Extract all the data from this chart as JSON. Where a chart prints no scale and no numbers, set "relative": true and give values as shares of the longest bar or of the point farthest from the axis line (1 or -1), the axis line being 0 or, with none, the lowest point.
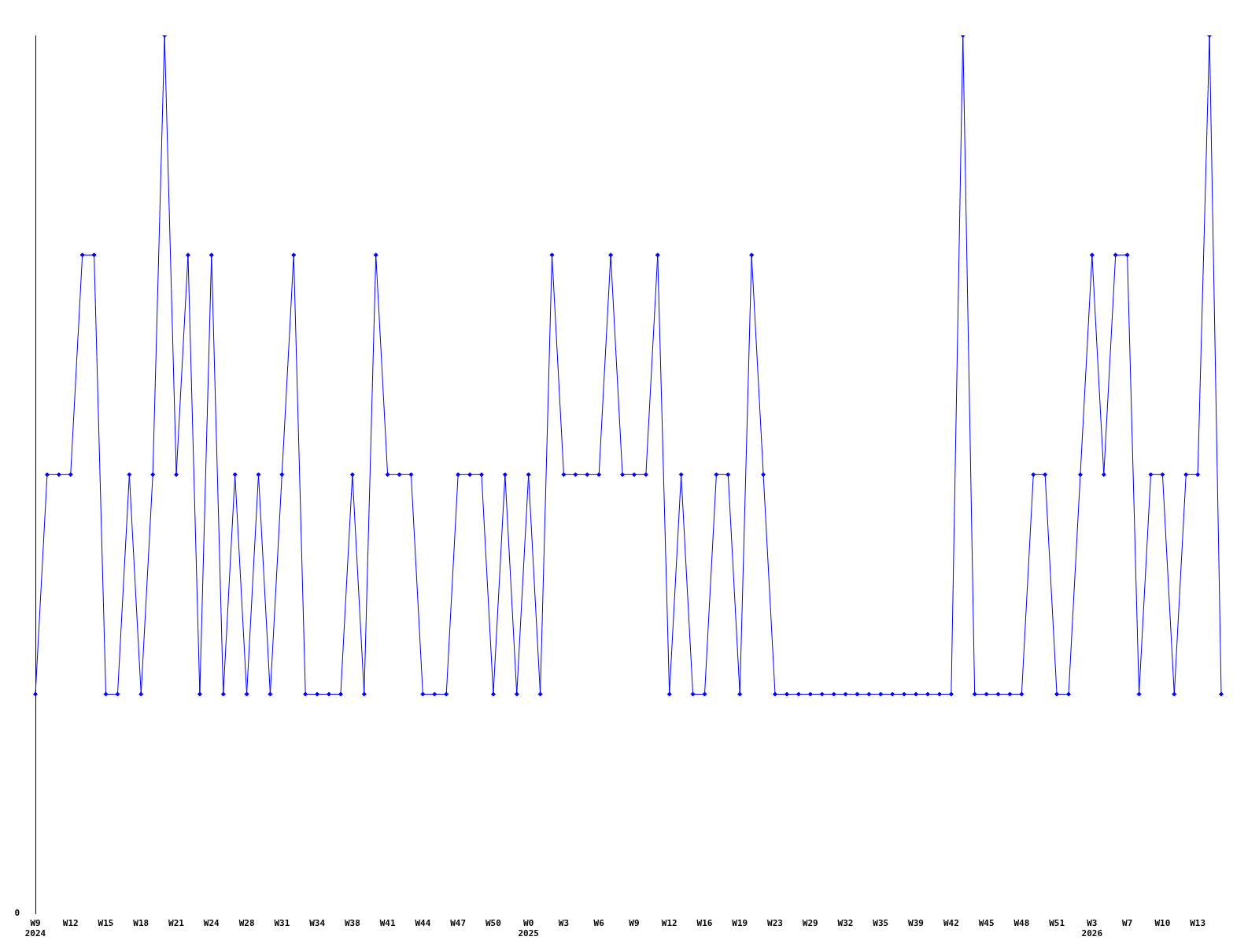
{
  "chart_data": {
    "type": "line",
    "relative": true,
    "marker": "diamond",
    "line_style": "solid",
    "grid": false,
    "legend": false,
    "annotations": [
      "0"
    ],
    "categories": [
      "W9\n2024",
      null,
      null,
      "W12",
      null,
      null,
      "W15",
      null,
      null,
      "W18",
      null,
      null,
      "W21",
      null,
      null,
      "W24",
      null,
      null,
      "W28",
      null,
      null,
      "W31",
      null,
      null,
      "W34",
      null,
      null,
      "W38",
      null,
      null,
      "W41",
      null,
      null,
      "W44",
      null,
      null,
      "W47",
      null,
      null,
      "W50",
      null,
      null,
      "W0\n2025",
      null,
      null,
      "W3",
      null,
      null,
      "W6",
      null,
      null,
      "W9",
      null,
      null,
      "W12",
      null,
      null,
      "W16",
      null,
      null,
      "W19",
      null,
      null,
      "W23",
      null,
      null,
      "W29",
      null,
      null,
      "W32",
      null,
      null,
      "W35",
      null,
      null,
      "W39",
      null,
      null,
      "W42",
      null,
      null,
      "W45",
      null,
      null,
      "W48",
      null,
      null,
      "W51",
      null,
      null,
      "W3\n2026",
      null,
      null,
      "W7",
      null,
      null,
      "W10",
      null,
      null,
      "W13",
      null,
      null
    ],
    "series": [
      {
        "color": "#0000ff",
        "values": [
          0.25,
          0.5,
          0.5,
          0.5,
          0.75,
          0.75,
          0.25,
          0.25,
          0.5,
          0.25,
          0.5,
          1,
          0.5,
          0.75,
          0.25,
          0.75,
          0.25,
          0.5,
          0.25,
          0.5,
          0.25,
          0.5,
          0.75,
          0.25,
          0.25,
          0.25,
          0.25,
          0.5,
          0.25,
          0.75,
          0.5,
          0.5,
          0.5,
          0.25,
          0.25,
          0.25,
          0.5,
          0.5,
          0.5,
          0.25,
          0.5,
          0.25,
          0.5,
          0.25,
          0.75,
          0.5,
          0.5,
          0.5,
          0.5,
          0.75,
          0.5,
          0.5,
          0.5,
          0.75,
          0.25,
          0.5,
          0.25,
          0.25,
          0.5,
          0.5,
          0.25,
          0.75,
          0.5,
          0.25,
          0.25,
          0.25,
          0.25,
          0.25,
          0.25,
          0.25,
          0.25,
          0.25,
          0.25,
          0.25,
          0.25,
          0.25,
          0.25,
          0.25,
          0.25,
          1,
          0.25,
          0.25,
          0.25,
          0.25,
          0.25,
          0.5,
          0.5,
          0.25,
          0.25,
          0.5,
          0.75,
          0.5,
          0.75,
          0.75,
          0.25,
          0.5,
          0.5,
          0.25,
          0.5,
          0.5,
          1,
          0.25
        ]
      }
    ]
  }
}
